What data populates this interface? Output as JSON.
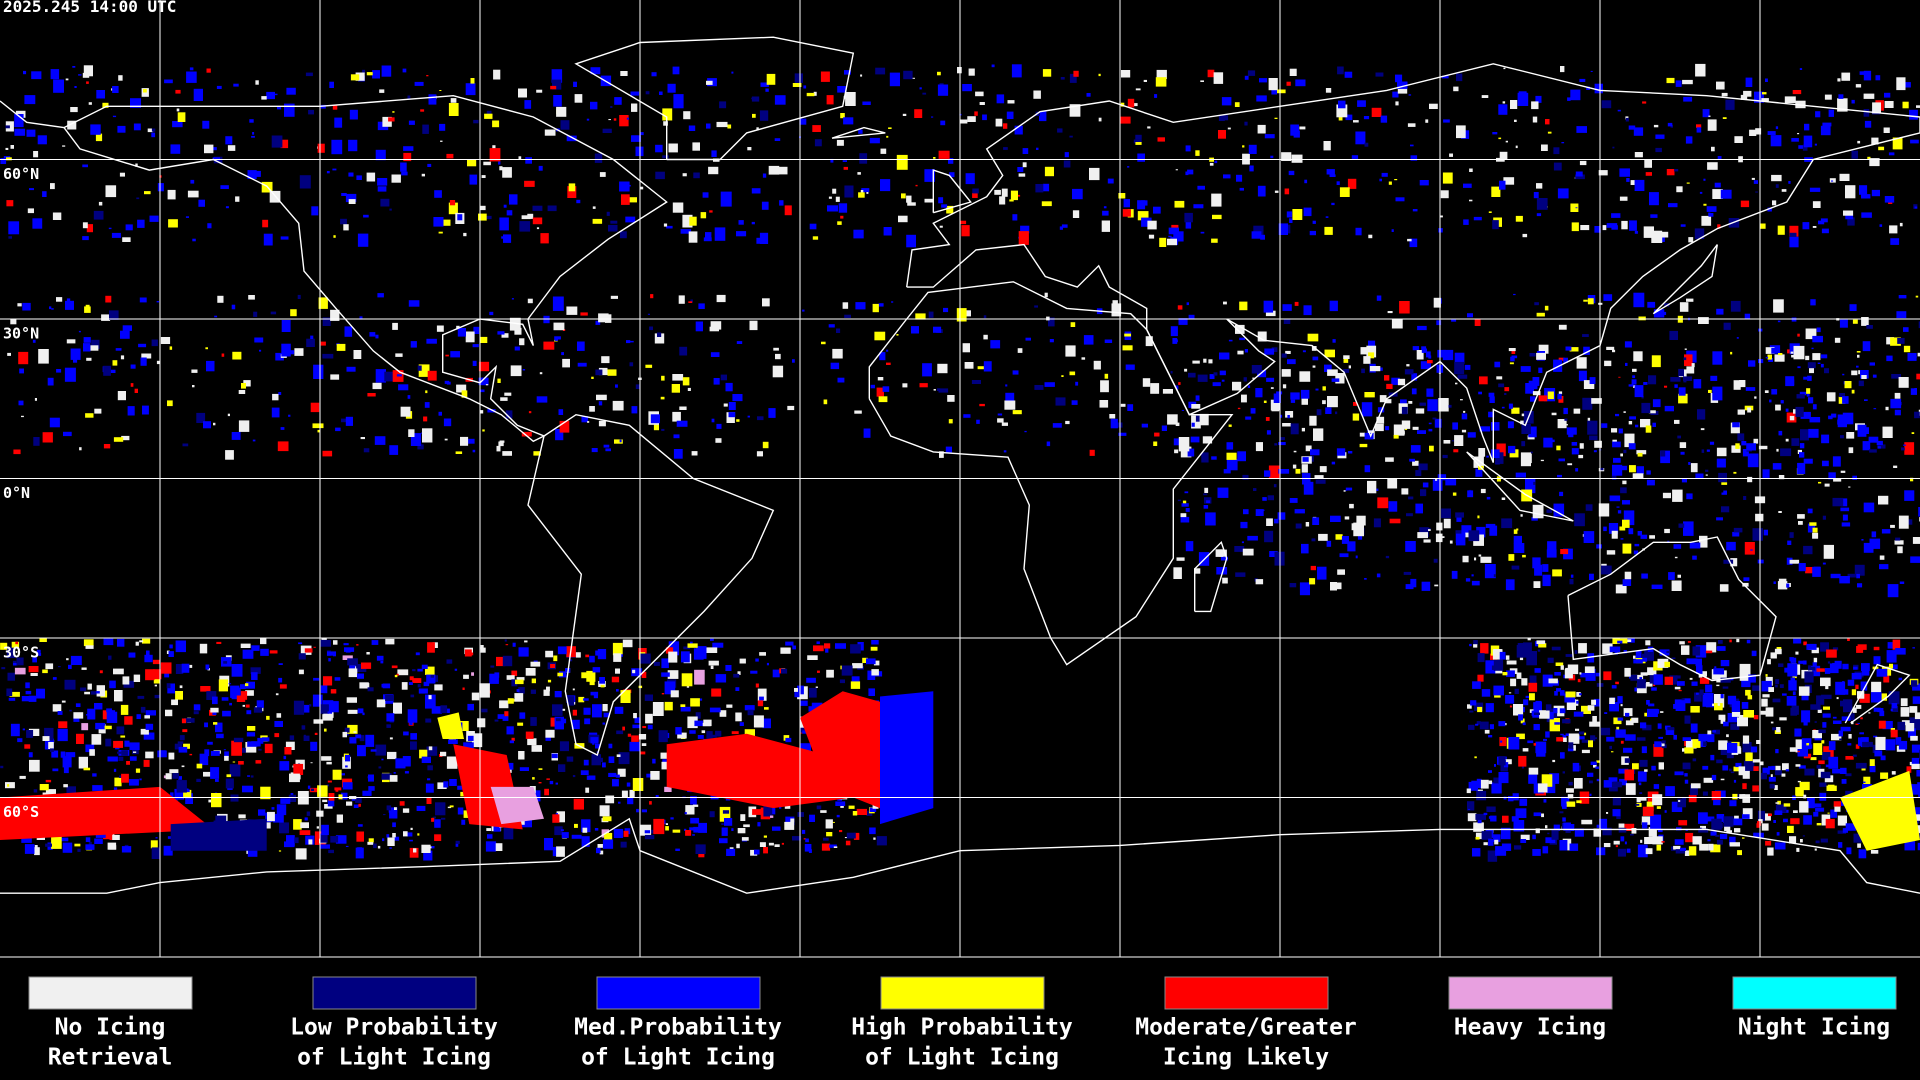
{
  "header": {
    "title": "2025.245 14:00 UTC"
  },
  "map": {
    "lat_labels": [
      "60°N",
      "30°N",
      "0°N",
      "30°S",
      "60°S"
    ]
  },
  "legend": [
    {
      "label": [
        "No Icing",
        "Retrieval"
      ],
      "color": "#f0f0f0"
    },
    {
      "label": [
        "Low Probability",
        "of Light Icing"
      ],
      "color": "#000080"
    },
    {
      "label": [
        "Med.Probability",
        "of Light Icing"
      ],
      "color": "#0000ff"
    },
    {
      "label": [
        "High Probability",
        "of Light Icing"
      ],
      "color": "#ffff00"
    },
    {
      "label": [
        "Moderate/Greater",
        "Icing Likely"
      ],
      "color": "#ff0000"
    },
    {
      "label": [
        "Heavy Icing"
      ],
      "color": "#e8a0e0"
    },
    {
      "label": [
        "Night Icing"
      ],
      "color": "#00ffff"
    }
  ]
}
